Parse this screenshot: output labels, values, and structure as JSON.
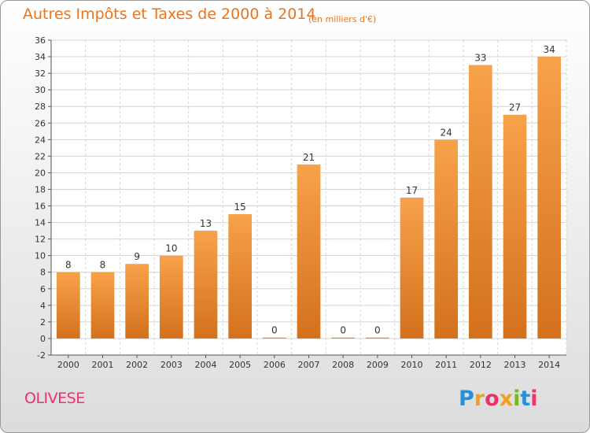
{
  "title": "Autres Impôts et Taxes de 2000 à 2014",
  "subtitle": "(en milliers d'€)",
  "commune": "OLIVESE",
  "logo": {
    "text": "Proxiti",
    "letters": [
      {
        "ch": "P",
        "color": "#2a8fd6"
      },
      {
        "ch": "r",
        "color": "#f0a020"
      },
      {
        "ch": "o",
        "color": "#e8356a"
      },
      {
        "ch": "x",
        "color": "#f0a020"
      },
      {
        "ch": "i",
        "color": "#76b82a"
      },
      {
        "ch": "t",
        "color": "#2a8fd6"
      },
      {
        "ch": "i",
        "color": "#e8356a"
      }
    ]
  },
  "colors": {
    "bar_top": "#f7a24a",
    "bar_bottom": "#d4711c",
    "title": "#e8751f",
    "commune": "#e8356a",
    "grid": "#d4d4d4"
  },
  "chart_data": {
    "type": "bar",
    "categories": [
      "2000",
      "2001",
      "2002",
      "2003",
      "2004",
      "2005",
      "2006",
      "2007",
      "2008",
      "2009",
      "2010",
      "2011",
      "2012",
      "2013",
      "2014"
    ],
    "values": [
      8,
      8,
      9,
      10,
      13,
      15,
      0,
      21,
      0,
      0,
      17,
      24,
      33,
      27,
      34
    ],
    "ylim": [
      -2,
      36
    ],
    "yticks": [
      -2,
      0,
      2,
      4,
      6,
      8,
      10,
      12,
      14,
      16,
      18,
      20,
      22,
      24,
      26,
      28,
      30,
      32,
      34,
      36
    ],
    "grid": true
  }
}
